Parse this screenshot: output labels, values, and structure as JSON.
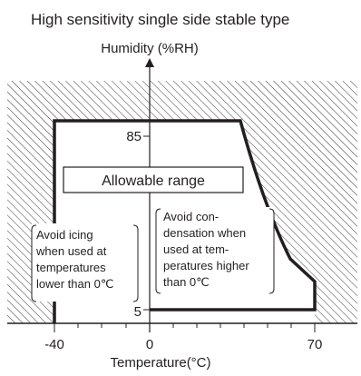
{
  "title": "High sensitivity single side stable type",
  "y_axis_label": "Humidity (%RH)",
  "x_axis_label": "Temperature(°C)",
  "x_ticks": {
    "neg40": "-40",
    "zero": "0",
    "seventy": "70"
  },
  "y_ticks": {
    "eighty_five": "85",
    "five": "5"
  },
  "allowable_range_label": "Allowable range",
  "icing_note": [
    "Avoid icing",
    "when used at",
    "temperatures",
    "lower than 0℃"
  ],
  "condensation_note": [
    "Avoid con-",
    "densation when",
    "used at tem-",
    "peratures higher",
    "than 0℃"
  ],
  "colors": {
    "line": "#231f20",
    "hatch": "#231f20",
    "background": "#ffffff"
  }
}
